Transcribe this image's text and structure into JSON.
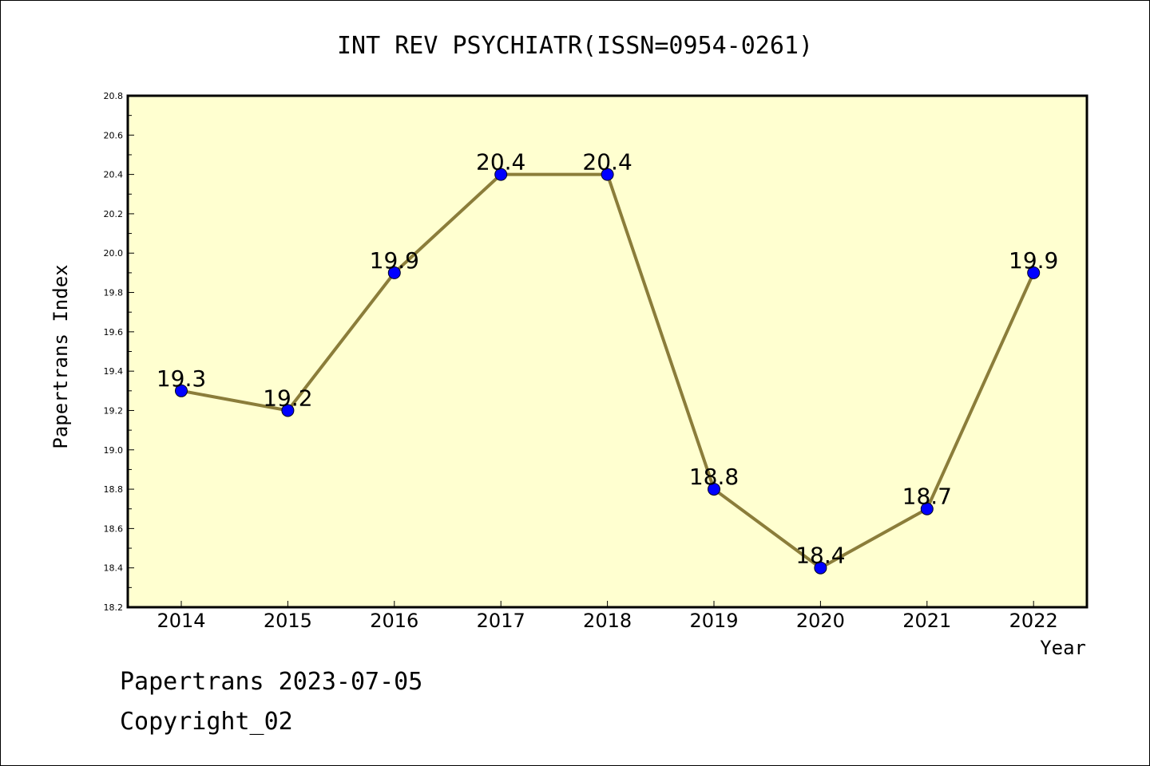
{
  "chart_data": {
    "type": "line",
    "title": "INT REV PSYCHIATR(ISSN=0954-0261)",
    "xlabel": "Year",
    "ylabel": "Papertrans Index",
    "categories": [
      "2014",
      "2015",
      "2016",
      "2017",
      "2018",
      "2019",
      "2020",
      "2021",
      "2022"
    ],
    "values": [
      19.3,
      19.2,
      19.9,
      20.4,
      20.4,
      18.8,
      18.4,
      18.7,
      19.9
    ],
    "data_labels": [
      "19.3",
      "19.2",
      "19.9",
      "20.4",
      "20.4",
      "18.8",
      "18.4",
      "18.7",
      "19.9"
    ],
    "ylim": [
      18.2,
      20.8
    ],
    "yticks": [
      "18.2",
      "18.4",
      "18.6",
      "18.8",
      "19.0",
      "19.2",
      "19.4",
      "19.6",
      "19.8",
      "20.0",
      "20.2",
      "20.4",
      "20.6",
      "20.8"
    ],
    "grid": false,
    "plot_background": "#ffffd0",
    "line_color": "#8b7d3a",
    "marker_color": "#0000ff"
  },
  "footer": {
    "line1": "Papertrans 2023-07-05",
    "line2": "Copyright_02"
  }
}
